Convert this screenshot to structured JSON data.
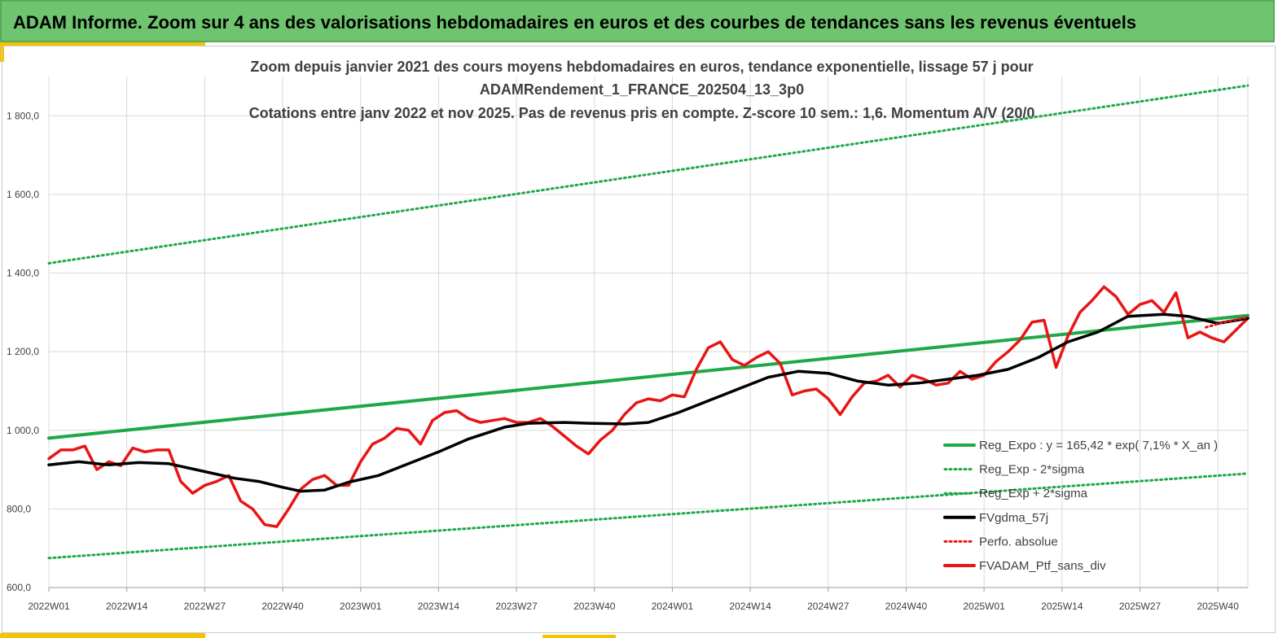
{
  "banner": {
    "title": "ADAM Informe. Zoom sur 4 ans des valorisations hebdomadaires en euros et des courbes de tendances sans les revenus éventuels"
  },
  "colors": {
    "banner_bg": "#6fc46f",
    "accent": "#f5c400",
    "trend": "#1fa848",
    "price": "#e81515",
    "average": "#000000",
    "grid": "#d9d9d9"
  },
  "chart_data": {
    "type": "line",
    "title_lines": [
      "Zoom depuis janvier 2021 des cours moyens hebdomadaires  en euros, tendance exponentielle, lissage 57 j pour",
      "ADAMRendement_1_FRANCE_202504_13_3p0",
      "Cotations  entre janv 2022 et nov 2025. Pas de revenus pris en compte. Z-score 10 sem.: 1,6. Momentum A/V (20/0"
    ],
    "x_tick_labels": [
      "2022W01",
      "2022W14",
      "2022W27",
      "2022W40",
      "2023W01",
      "2023W14",
      "2023W27",
      "2023W40",
      "2024W01",
      "2024W14",
      "2024W27",
      "2024W40",
      "2025W01",
      "2025W14",
      "2025W27",
      "2025W40"
    ],
    "x_week_range": [
      0,
      200
    ],
    "y_tick_labels": [
      "600,0",
      "800,0",
      "1 000,0",
      "1 200,0",
      "1 400,0",
      "1 600,0",
      "1 800,0"
    ],
    "y_ticks": [
      600,
      800,
      1000,
      1200,
      1400,
      1600,
      1800
    ],
    "ylim": [
      600,
      1900
    ],
    "grid": true,
    "legend_position": "bottom-right",
    "legend": [
      {
        "label": "Reg_Expo : y = 165,42 * exp( 7,1% *  X_an )",
        "style": "solid",
        "color": "#1fa848"
      },
      {
        "label": "Reg_Exp - 2*sigma",
        "style": "dotted",
        "color": "#1fa848"
      },
      {
        "label": "Reg_Exp + 2*sigma",
        "style": "dotted",
        "color": "#1fa848"
      },
      {
        "label": "FVgdma_57j",
        "style": "solid",
        "color": "#000000"
      },
      {
        "label": "Perfo. absolue",
        "style": "dotted",
        "color": "#e81515"
      },
      {
        "label": "FVADAM_Ptf_sans_div",
        "style": "solid",
        "color": "#e81515"
      }
    ],
    "series": [
      {
        "name": "Reg_Expo : y = 165,42 * exp( 7,1% *  X_an )",
        "x": [
          0,
          200
        ],
        "y": [
          980,
          1292
        ]
      },
      {
        "name": "Reg_Exp - 2*sigma",
        "x": [
          0,
          200
        ],
        "y": [
          675,
          890
        ]
      },
      {
        "name": "Reg_Exp + 2*sigma",
        "x": [
          0,
          200
        ],
        "y": [
          1425,
          1877
        ]
      },
      {
        "name": "FVgdma_57j",
        "x": [
          0,
          5,
          10,
          15,
          20,
          26,
          31,
          35,
          39,
          42,
          46,
          50,
          55,
          60,
          65,
          70,
          76,
          80,
          86,
          90,
          96,
          100,
          105,
          110,
          115,
          120,
          125,
          130,
          135,
          140,
          145,
          150,
          155,
          160,
          165,
          170,
          175,
          180,
          186,
          190,
          195,
          200
        ],
        "y": [
          912,
          920,
          912,
          918,
          915,
          895,
          878,
          870,
          855,
          845,
          848,
          868,
          885,
          915,
          945,
          978,
          1008,
          1018,
          1020,
          1018,
          1016,
          1020,
          1045,
          1075,
          1105,
          1135,
          1150,
          1145,
          1125,
          1115,
          1120,
          1130,
          1140,
          1155,
          1185,
          1225,
          1250,
          1290,
          1295,
          1290,
          1272,
          1285
        ]
      },
      {
        "name": "Perfo. absolue",
        "x": [
          193,
          196,
          199,
          200
        ],
        "y": [
          1262,
          1275,
          1285,
          1288
        ]
      },
      {
        "name": "FVADAM_Ptf_sans_div",
        "x": [
          0,
          2,
          4,
          6,
          8,
          10,
          12,
          14,
          16,
          18,
          20,
          22,
          24,
          26,
          28,
          30,
          32,
          34,
          36,
          38,
          40,
          42,
          44,
          46,
          48,
          50,
          52,
          54,
          56,
          58,
          60,
          62,
          64,
          66,
          68,
          70,
          72,
          74,
          76,
          78,
          80,
          82,
          84,
          86,
          88,
          90,
          92,
          94,
          96,
          98,
          100,
          102,
          104,
          106,
          108,
          110,
          112,
          114,
          116,
          118,
          120,
          122,
          124,
          126,
          128,
          130,
          132,
          134,
          136,
          138,
          140,
          142,
          144,
          146,
          148,
          150,
          152,
          154,
          156,
          158,
          160,
          162,
          164,
          166,
          168,
          170,
          172,
          174,
          176,
          178,
          180,
          182,
          184,
          186,
          188,
          190,
          192,
          194,
          196,
          198,
          200
        ],
        "y": [
          928,
          950,
          950,
          960,
          900,
          920,
          910,
          955,
          945,
          950,
          950,
          870,
          840,
          860,
          870,
          885,
          820,
          800,
          760,
          755,
          800,
          850,
          875,
          885,
          860,
          860,
          920,
          965,
          980,
          1005,
          1000,
          965,
          1025,
          1045,
          1050,
          1030,
          1020,
          1025,
          1030,
          1020,
          1020,
          1030,
          1010,
          985,
          960,
          940,
          975,
          1000,
          1040,
          1070,
          1080,
          1075,
          1090,
          1085,
          1155,
          1210,
          1225,
          1180,
          1165,
          1185,
          1200,
          1170,
          1090,
          1100,
          1105,
          1080,
          1040,
          1085,
          1120,
          1125,
          1140,
          1110,
          1140,
          1130,
          1115,
          1120,
          1150,
          1130,
          1140,
          1175,
          1200,
          1230,
          1275,
          1280,
          1160,
          1240,
          1300,
          1330,
          1365,
          1340,
          1295,
          1320,
          1330,
          1300,
          1350,
          1235,
          1250,
          1235,
          1225,
          1255,
          1285
        ]
      }
    ]
  }
}
